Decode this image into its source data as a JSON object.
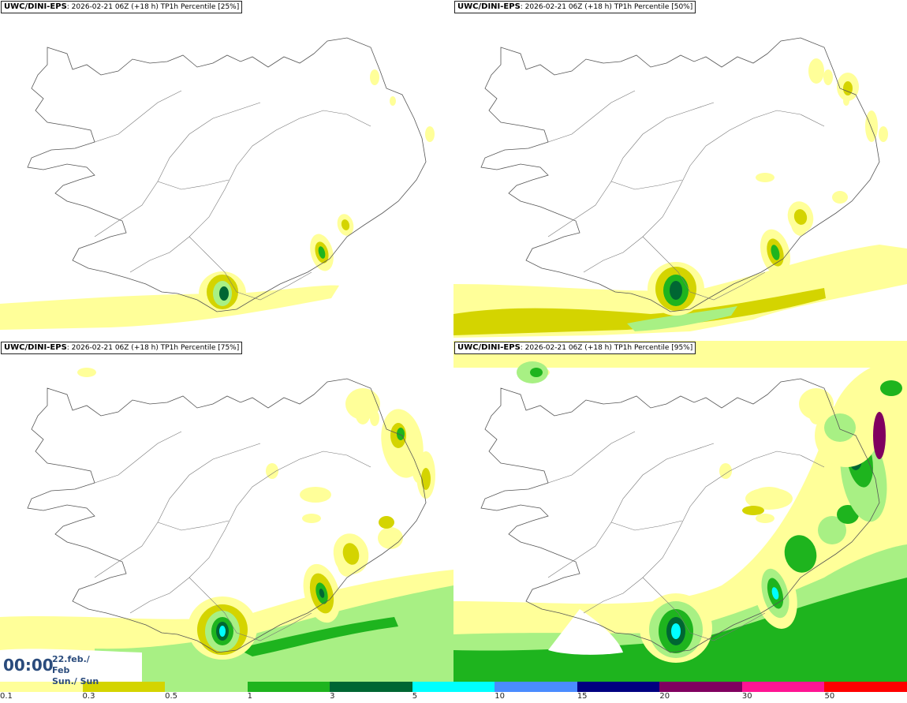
{
  "panels": [
    {
      "model": "UWC/DINI-EPS",
      "info": ": 2026-02-21 06Z (+18 h) TP1h Percentile [25%]",
      "level": 1
    },
    {
      "model": "UWC/DINI-EPS",
      "info": ": 2026-02-21 06Z (+18 h) TP1h Percentile [50%]",
      "level": 2
    },
    {
      "model": "UWC/DINI-EPS",
      "info": ": 2026-02-21 06Z (+18 h) TP1h Percentile [75%]",
      "level": 3
    },
    {
      "model": "UWC/DINI-EPS",
      "info": ": 2026-02-21 06Z (+18 h) TP1h Percentile [95%]",
      "level": 4
    }
  ],
  "time": {
    "clock": "00:00",
    "date_line1": "22.feb./ Feb",
    "date_line2": "Sun./ Sun"
  },
  "legend": {
    "colors": [
      "#ffff99",
      "#d4d400",
      "#a8f084",
      "#1eb41e",
      "#006633",
      "#00ffff",
      "#4a8cff",
      "#000080",
      "#800060",
      "#ff1493",
      "#ff0000"
    ],
    "labels": [
      "0.1",
      "0.3",
      "0.5",
      "1",
      "3",
      "5",
      "10",
      "15",
      "20",
      "30",
      "50"
    ]
  }
}
